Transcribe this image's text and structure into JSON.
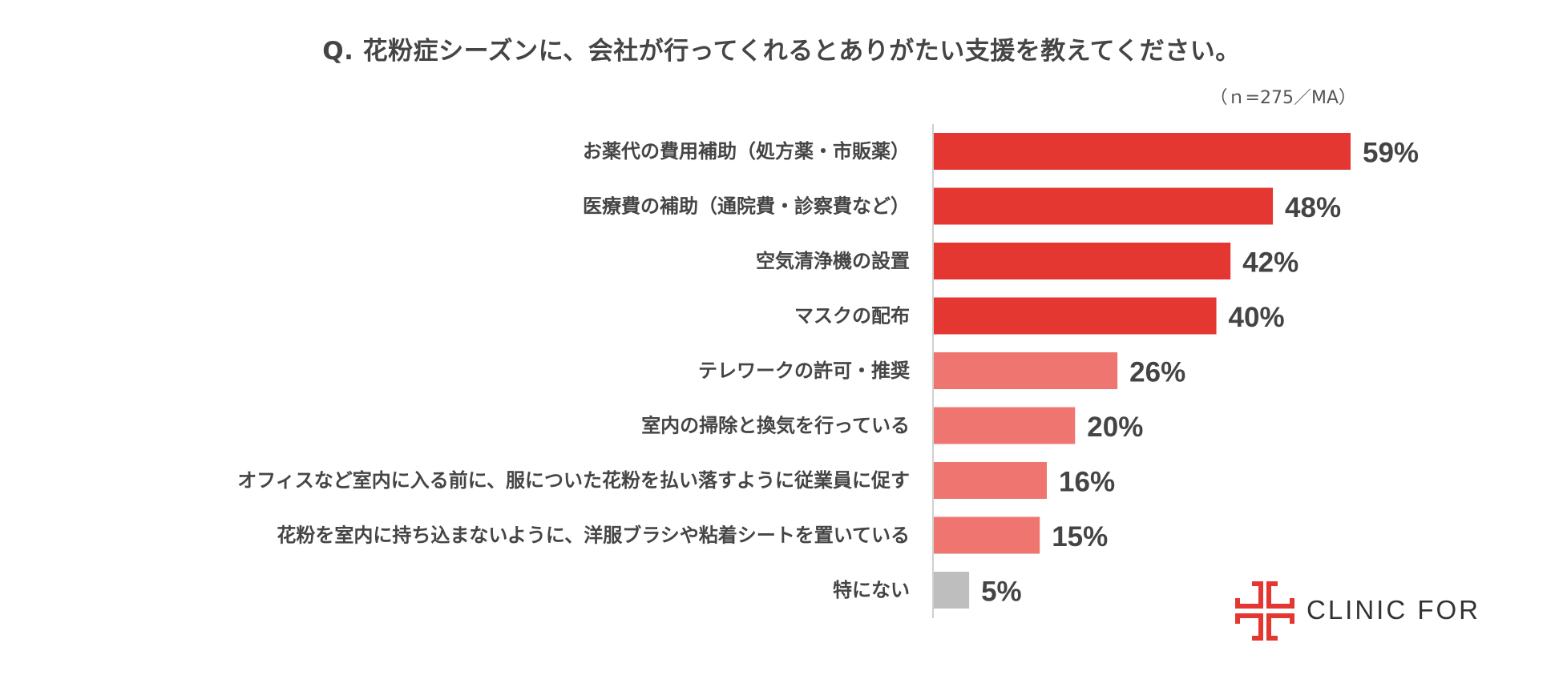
{
  "chart_data": {
    "type": "bar",
    "orientation": "horizontal",
    "title": "Q. 花粉症シーズンに、会社が行ってくれるとありがたい支援を教えてください。",
    "note": "（ｎ=275／MA）",
    "categories": [
      "お薬代の費用補助（処方薬・市販薬）",
      "医療費の補助（通院費・診察費など）",
      "空気清浄機の設置",
      "マスクの配布",
      "テレワークの許可・推奨",
      "室内の掃除と換気を行っている",
      "オフィスなど室内に入る前に、服についた花粉を払い落すように従業員に促す",
      "花粉を室内に持ち込まないように、洋服ブラシや粘着シートを置いている",
      "特にない"
    ],
    "values": [
      59,
      48,
      42,
      40,
      26,
      20,
      16,
      15,
      5
    ],
    "value_labels": [
      "59%",
      "48%",
      "42%",
      "40%",
      "26%",
      "20%",
      "16%",
      "15%",
      "5%"
    ],
    "bar_colors": [
      "#E53731",
      "#E53731",
      "#E53731",
      "#E53731",
      "#EE7570",
      "#EE7570",
      "#EE7570",
      "#EE7570",
      "#BEBEBE"
    ],
    "xlim": [
      0,
      100
    ],
    "grid": false,
    "legend": "none"
  },
  "brand": {
    "name": "CLINIC FOR",
    "color": "#E53731",
    "icon": "clinic-for-cross-icon"
  }
}
